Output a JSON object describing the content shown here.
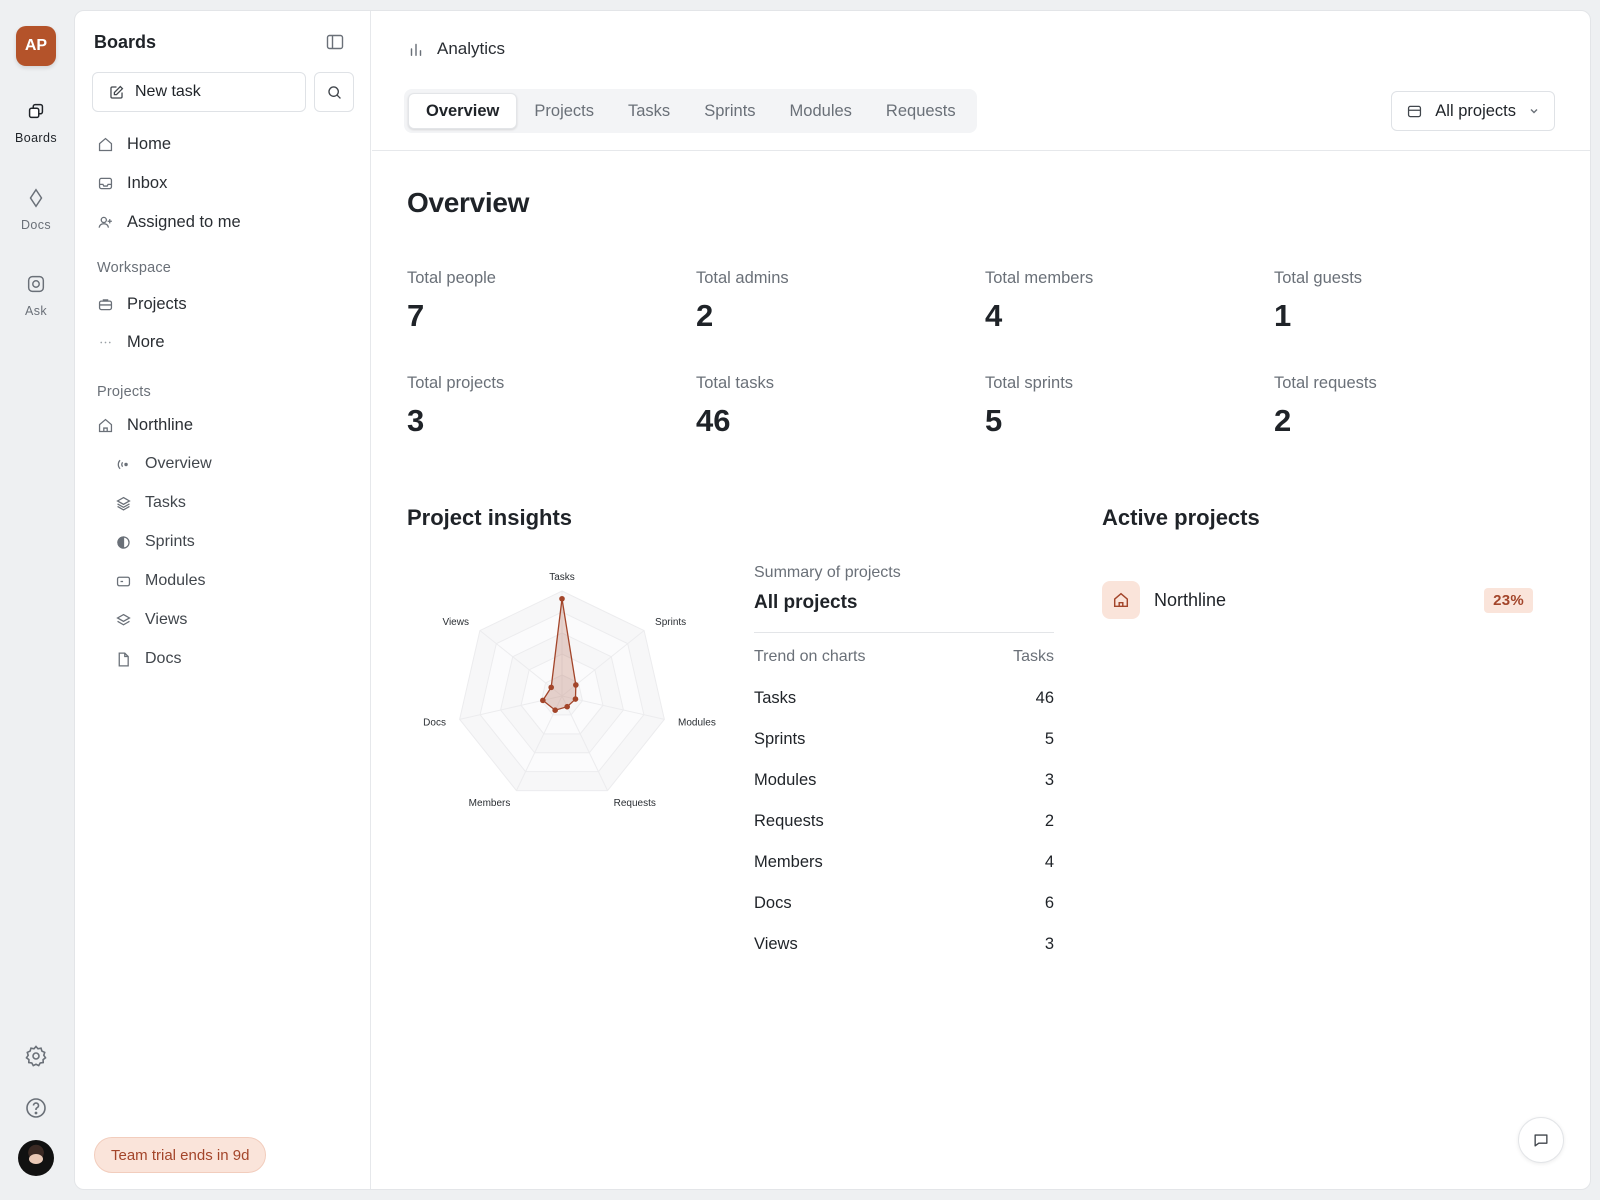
{
  "rail": {
    "avatar_initials": "AP",
    "items": [
      {
        "label": "Boards",
        "icon": "boards-icon"
      },
      {
        "label": "Docs",
        "icon": "diamond-icon"
      },
      {
        "label": "Ask",
        "icon": "ask-icon"
      }
    ]
  },
  "sidebar": {
    "title": "Boards",
    "new_task": "New task",
    "nav": [
      {
        "label": "Home",
        "icon": "home-icon"
      },
      {
        "label": "Inbox",
        "icon": "inbox-icon"
      },
      {
        "label": "Assigned to me",
        "icon": "user-plus-icon"
      }
    ],
    "workspace_label": "Workspace",
    "workspace": [
      {
        "label": "Projects",
        "icon": "briefcase-icon"
      },
      {
        "label": "More",
        "icon": "ellipsis-icon"
      }
    ],
    "projects_label": "Projects",
    "project": {
      "label": "Northline",
      "icon": "home-icon"
    },
    "project_items": [
      {
        "label": "Overview",
        "icon": "overview-icon"
      },
      {
        "label": "Tasks",
        "icon": "layers-icon"
      },
      {
        "label": "Sprints",
        "icon": "half-circle-icon"
      },
      {
        "label": "Modules",
        "icon": "module-icon"
      },
      {
        "label": "Views",
        "icon": "layers-icon"
      },
      {
        "label": "Docs",
        "icon": "file-icon"
      }
    ],
    "trial": "Team trial ends in 9d"
  },
  "header": {
    "breadcrumb": "Analytics",
    "tabs": [
      "Overview",
      "Projects",
      "Tasks",
      "Sprints",
      "Modules",
      "Requests"
    ],
    "active_tab": "Overview",
    "filter": "All projects"
  },
  "overview": {
    "title": "Overview",
    "stats": [
      {
        "label": "Total people",
        "value": "7"
      },
      {
        "label": "Total admins",
        "value": "2"
      },
      {
        "label": "Total members",
        "value": "4"
      },
      {
        "label": "Total guests",
        "value": "1"
      },
      {
        "label": "Total projects",
        "value": "3"
      },
      {
        "label": "Total tasks",
        "value": "46"
      },
      {
        "label": "Total sprints",
        "value": "5"
      },
      {
        "label": "Total requests",
        "value": "2"
      }
    ]
  },
  "insights": {
    "title": "Project insights",
    "summary_label": "Summary of projects",
    "summary_title": "All projects",
    "col_left": "Trend on charts",
    "col_right": "Tasks",
    "rows": [
      {
        "label": "Tasks",
        "value": "46"
      },
      {
        "label": "Sprints",
        "value": "5"
      },
      {
        "label": "Modules",
        "value": "3"
      },
      {
        "label": "Requests",
        "value": "2"
      },
      {
        "label": "Members",
        "value": "4"
      },
      {
        "label": "Docs",
        "value": "6"
      },
      {
        "label": "Views",
        "value": "3"
      }
    ]
  },
  "chart_data": {
    "type": "radar",
    "categories": [
      "Tasks",
      "Sprints",
      "Modules",
      "Requests",
      "Members",
      "Docs",
      "Views"
    ],
    "values": [
      46,
      5,
      3,
      2,
      4,
      6,
      3
    ],
    "max": 50,
    "color": "#a3452a"
  },
  "active_projects": {
    "title": "Active projects",
    "items": [
      {
        "name": "Northline",
        "percent": "23%"
      }
    ]
  },
  "colors": {
    "accent": "#b4532a",
    "accent_soft": "#fae4da"
  }
}
